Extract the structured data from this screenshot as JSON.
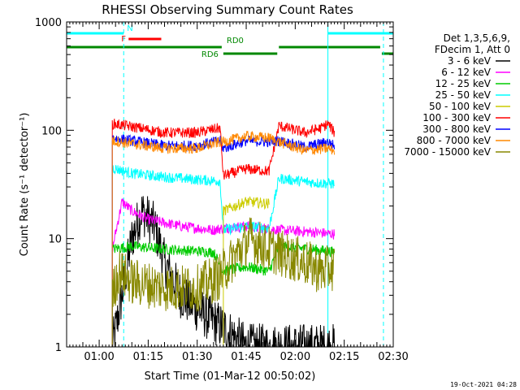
{
  "chart_data": {
    "type": "line",
    "title": "RHESSI Observing Summary Count Rates",
    "xlabel": "Start Time (01-Mar-12 00:50:02)",
    "ylabel": "Count Rate (s⁻¹ detector⁻¹)",
    "y_scale": "log",
    "ylim": [
      1,
      1000
    ],
    "xlim": [
      "00:50:02",
      "02:30:00"
    ],
    "x_ticks": [
      "01:00",
      "01:15",
      "01:30",
      "01:45",
      "02:00",
      "02:15",
      "02:30"
    ],
    "y_ticks": [
      "1",
      "10",
      "100",
      "1000"
    ],
    "legend_header": [
      "Det 1,3,5,6,9,",
      "FDecim 1, Att 0"
    ],
    "legend_position": "right",
    "series": [
      {
        "name": "3 - 6 keV",
        "color": "#000000",
        "points": [
          [
            "01:04:00",
            1.0
          ],
          [
            "01:07:00",
            3.0
          ],
          [
            "01:10:00",
            10.0
          ],
          [
            "01:13:00",
            18.0
          ],
          [
            "01:17:00",
            13.0
          ],
          [
            "01:20:00",
            6.0
          ],
          [
            "01:25:00",
            3.0
          ],
          [
            "01:32:00",
            2.0
          ],
          [
            "01:38:00",
            1.5
          ],
          [
            "01:45:00",
            1.0
          ],
          [
            "02:05:00",
            1.0
          ],
          [
            "02:12:00",
            1.0
          ]
        ]
      },
      {
        "name": "6 - 12 keV",
        "color": "#ff00ff",
        "points": [
          [
            "01:04:00",
            8.0
          ],
          [
            "01:07:00",
            22.0
          ],
          [
            "01:10:00",
            18.0
          ],
          [
            "01:15:00",
            15.0
          ],
          [
            "01:25:00",
            13.0
          ],
          [
            "01:35:00",
            12.0
          ],
          [
            "01:38:00",
            12.5
          ],
          [
            "01:45:00",
            13.0
          ],
          [
            "01:55:00",
            12.0
          ],
          [
            "02:05:00",
            11.5
          ],
          [
            "02:12:00",
            11.0
          ]
        ]
      },
      {
        "name": "12 - 25 keV",
        "color": "#00cc00",
        "points": [
          [
            "01:04:00",
            8.0
          ],
          [
            "01:10:00",
            8.5
          ],
          [
            "01:20:00",
            8.0
          ],
          [
            "01:35:00",
            7.5
          ],
          [
            "01:38:00",
            5.0
          ],
          [
            "01:45:00",
            5.5
          ],
          [
            "01:52:00",
            5.0
          ],
          [
            "01:55:00",
            8.5
          ],
          [
            "02:05:00",
            8.0
          ],
          [
            "02:12:00",
            7.5
          ]
        ]
      },
      {
        "name": "25 - 50 keV",
        "color": "#00ffff",
        "points": [
          [
            "01:04:00",
            45.0
          ],
          [
            "01:10:00",
            40.0
          ],
          [
            "01:20:00",
            37.0
          ],
          [
            "01:30:00",
            35.0
          ],
          [
            "01:37:00",
            34.0
          ],
          [
            "01:38:00",
            12.0
          ],
          [
            "01:45:00",
            13.0
          ],
          [
            "01:52:00",
            12.5
          ],
          [
            "01:55:00",
            36.0
          ],
          [
            "02:05:00",
            33.0
          ],
          [
            "02:12:00",
            32.0
          ]
        ]
      },
      {
        "name": "50 - 100 keV",
        "color": "#cccc00",
        "points": [
          [
            "01:38:00",
            18.0
          ],
          [
            "01:45:00",
            22.0
          ],
          [
            "01:52:00",
            21.0
          ]
        ]
      },
      {
        "name": "100 - 300 keV",
        "color": "#ff0000",
        "points": [
          [
            "01:04:00",
            115.0
          ],
          [
            "01:10:00",
            108.0
          ],
          [
            "01:20:00",
            95.0
          ],
          [
            "01:30:00",
            95.0
          ],
          [
            "01:37:00",
            105.0
          ],
          [
            "01:38:00",
            38.0
          ],
          [
            "01:45:00",
            44.0
          ],
          [
            "01:52:00",
            42.0
          ],
          [
            "01:55:00",
            110.0
          ],
          [
            "02:03:00",
            95.0
          ],
          [
            "02:08:00",
            105.0
          ],
          [
            "02:10:00",
            115.0
          ],
          [
            "02:12:00",
            95.0
          ]
        ]
      },
      {
        "name": "300 - 800 keV",
        "color": "#0000ff",
        "points": [
          [
            "01:04:00",
            85.0
          ],
          [
            "01:10:00",
            80.0
          ],
          [
            "01:20:00",
            72.0
          ],
          [
            "01:30:00",
            72.0
          ],
          [
            "01:37:00",
            80.0
          ],
          [
            "01:38:00",
            68.0
          ],
          [
            "01:45:00",
            80.0
          ],
          [
            "01:52:00",
            78.0
          ],
          [
            "01:55:00",
            80.0
          ],
          [
            "02:03:00",
            70.0
          ],
          [
            "02:10:00",
            78.0
          ],
          [
            "02:12:00",
            72.0
          ]
        ]
      },
      {
        "name": "800 - 7000 keV",
        "color": "#ff8800",
        "points": [
          [
            "01:04:00",
            80.0
          ],
          [
            "01:10:00",
            75.0
          ],
          [
            "01:20:00",
            68.0
          ],
          [
            "01:30:00",
            68.0
          ],
          [
            "01:37:00",
            78.0
          ],
          [
            "01:38:00",
            78.0
          ],
          [
            "01:45:00",
            88.0
          ],
          [
            "01:52:00",
            85.0
          ],
          [
            "01:55:00",
            78.0
          ],
          [
            "02:03:00",
            65.0
          ],
          [
            "02:10:00",
            68.0
          ],
          [
            "02:12:00",
            65.0
          ]
        ]
      },
      {
        "name": "7000 - 15000 keV",
        "color": "#888800",
        "points": [
          [
            "01:04:00",
            3.0
          ],
          [
            "01:06:00",
            5.0
          ],
          [
            "01:10:00",
            4.0
          ],
          [
            "01:20:00",
            3.5
          ],
          [
            "01:30:00",
            3.5
          ],
          [
            "01:37:00",
            4.5
          ],
          [
            "01:40:00",
            6.0
          ],
          [
            "01:46:00",
            10.0
          ],
          [
            "01:52:00",
            8.0
          ],
          [
            "01:57:00",
            7.0
          ],
          [
            "02:03:00",
            6.0
          ],
          [
            "02:08:00",
            5.0
          ],
          [
            "02:12:00",
            5.5
          ]
        ]
      }
    ],
    "state_bars": [
      {
        "label": "N",
        "color": "#00ffff",
        "level": "top",
        "segments": [
          [
            "00:50:02",
            "01:07:30"
          ],
          [
            "02:10:00",
            "02:30:00"
          ]
        ]
      },
      {
        "label": "F",
        "color": "#ff0000",
        "level": "second",
        "segments": [
          [
            "01:09:00",
            "01:19:00"
          ]
        ]
      },
      {
        "label": "RD0",
        "color": "#008800",
        "level": "third",
        "segments": [
          [
            "00:50:02",
            "01:37:30"
          ],
          [
            "01:55:00",
            "02:26:00"
          ]
        ]
      },
      {
        "label": "RD6",
        "color": "#008800",
        "level": "fourth",
        "segments": [
          [
            "01:38:00",
            "01:54:30"
          ],
          [
            "02:26:30",
            "02:30:00"
          ]
        ]
      }
    ],
    "vertical_markers": [
      {
        "time": "01:07:30",
        "color": "#00ffff",
        "style": "dashed"
      },
      {
        "time": "02:10:00",
        "color": "#00ffff",
        "style": "solid"
      },
      {
        "time": "02:27:00",
        "color": "#00ffff",
        "style": "dashed"
      }
    ],
    "timestamp": "19-Oct-2021 04:28"
  }
}
